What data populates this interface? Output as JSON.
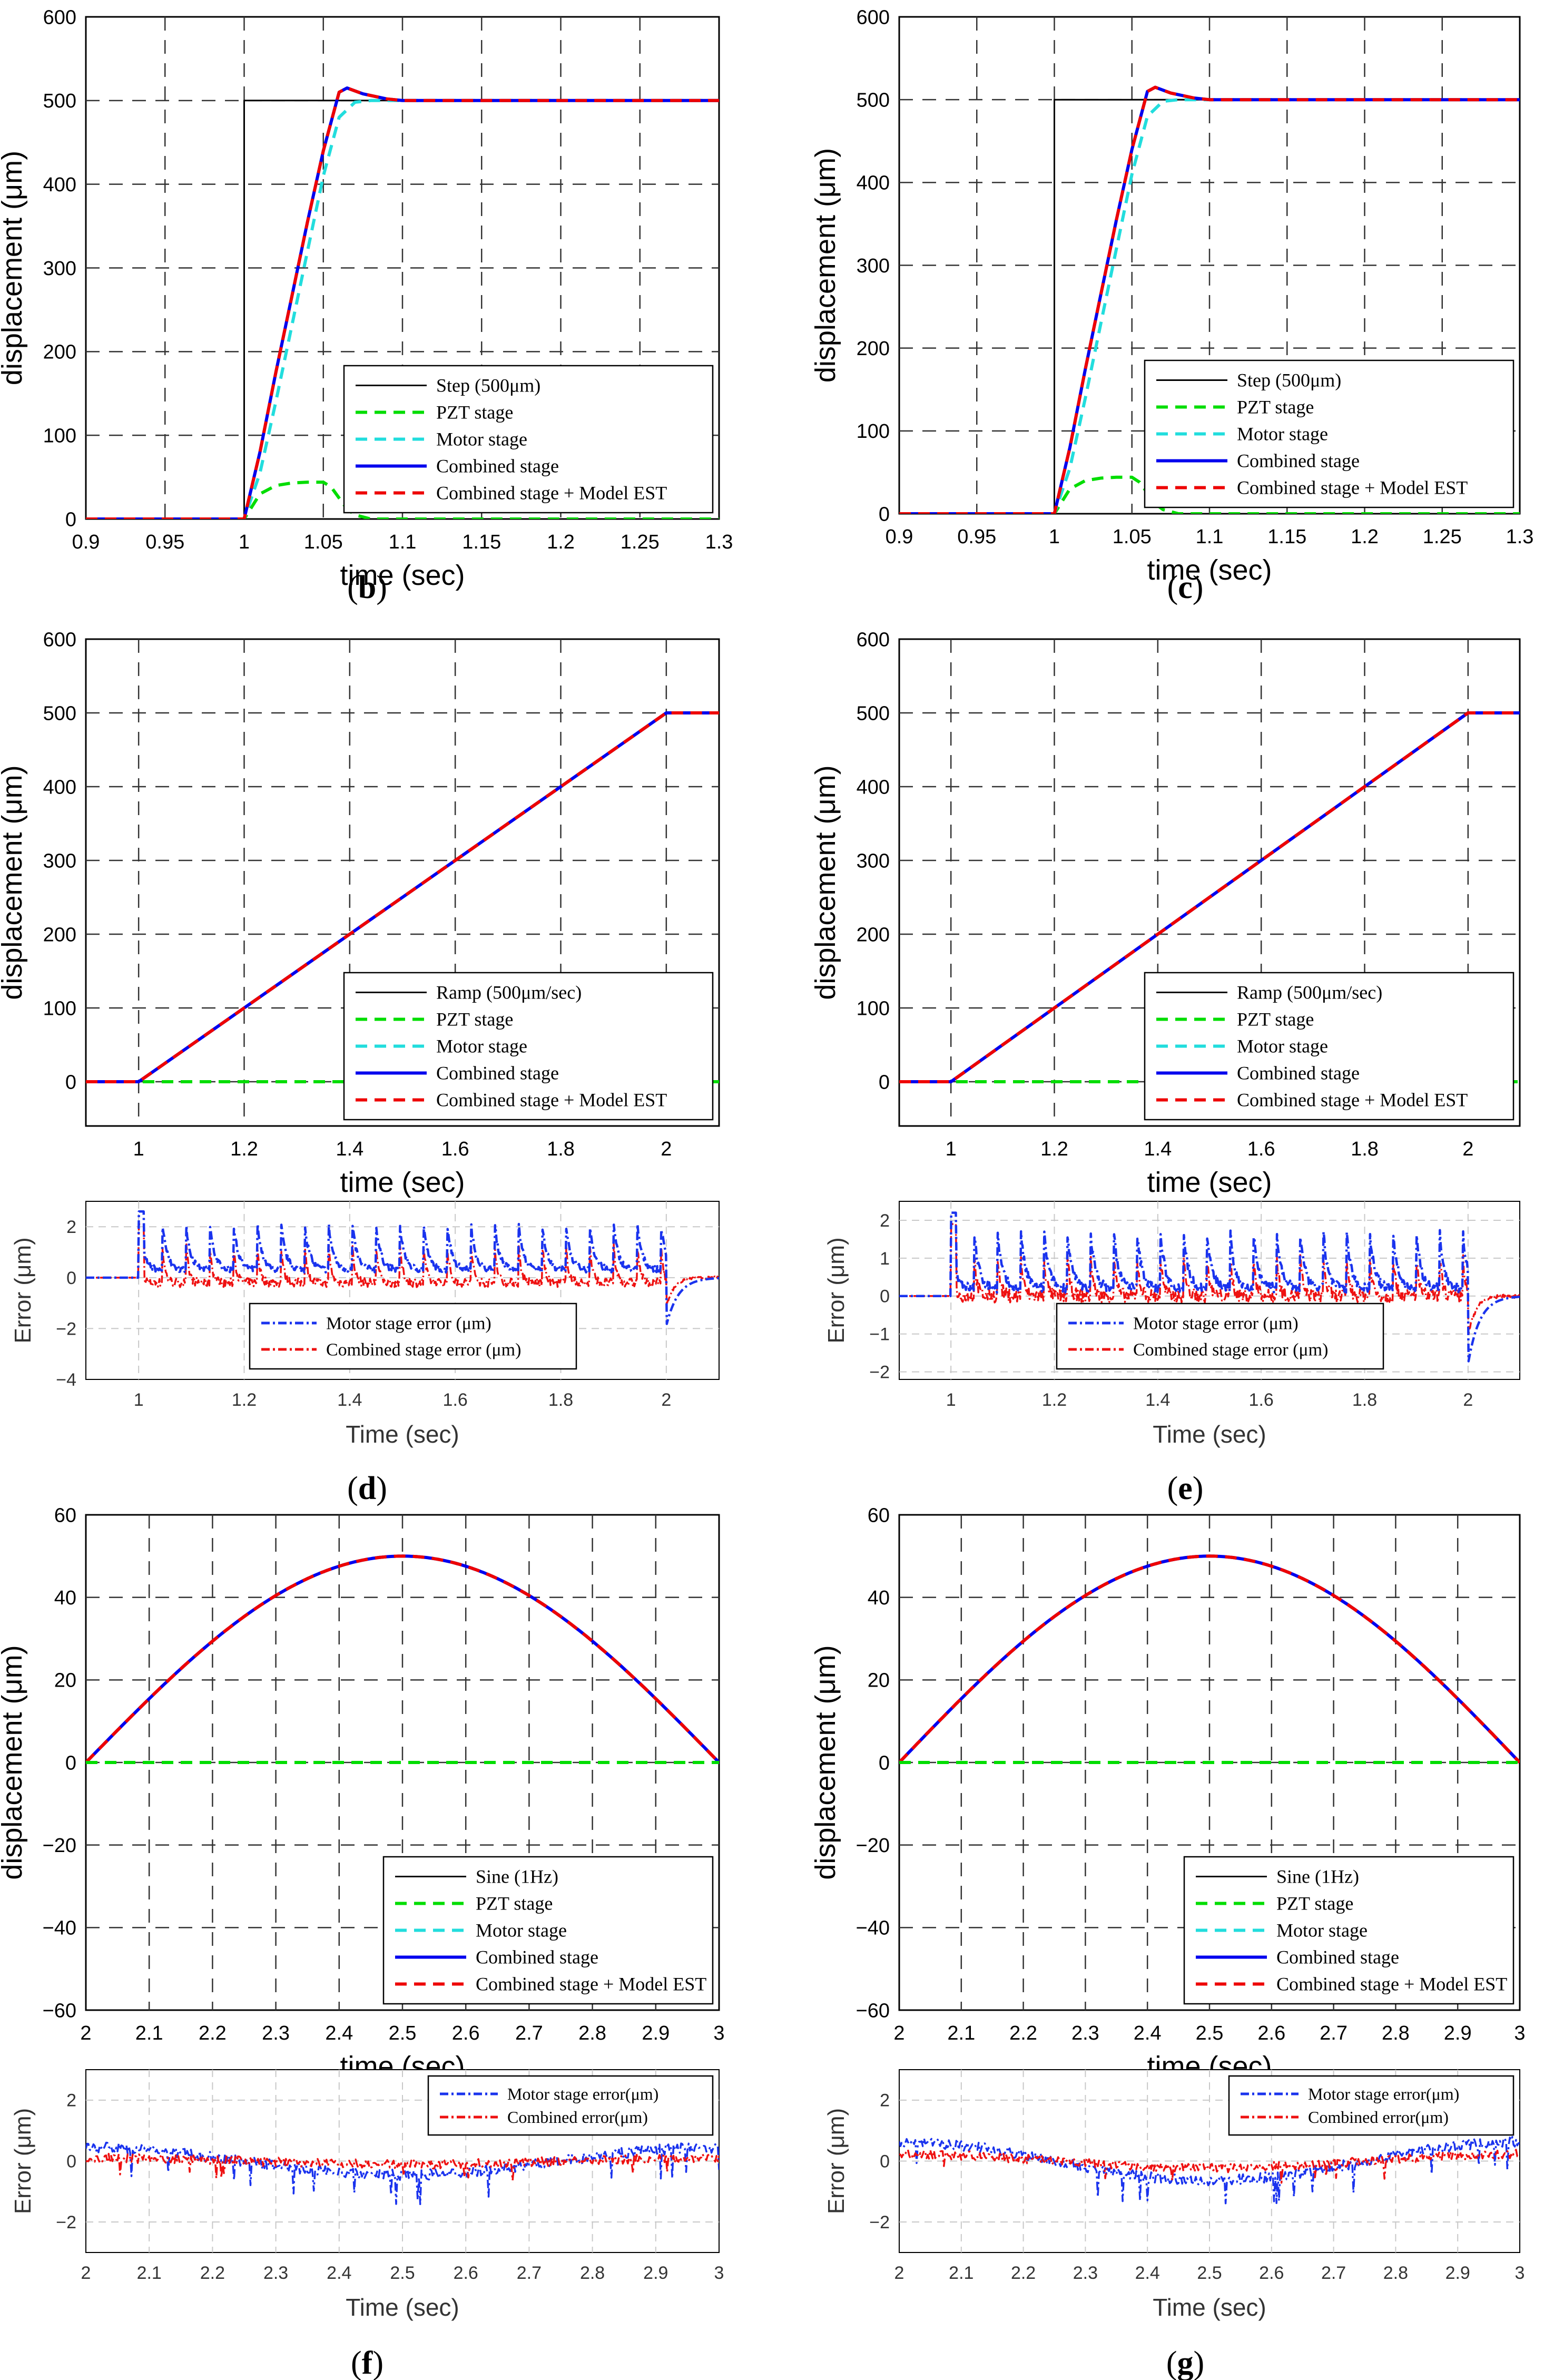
{
  "figure": {
    "panel_labels": [
      "(b)",
      "(c)",
      "(d)",
      "(e)",
      "(f)",
      "(g)"
    ]
  },
  "colors": {
    "reference": "#000000",
    "pzt": "#00dd00",
    "motor": "#22dddd",
    "combined": "#0000ee",
    "combined_est": "#ee0000",
    "motor_error": "#1a33ee",
    "combined_error": "#ee1111"
  },
  "chart_data": [
    {
      "id": "b",
      "type": "line",
      "label": "(b)",
      "xlabel": "time (sec)",
      "ylabel": "displacement (μm)",
      "xlim": [
        0.9,
        1.3
      ],
      "ylim": [
        0,
        600
      ],
      "xticks": [
        0.9,
        0.95,
        1,
        1.05,
        1.1,
        1.15,
        1.2,
        1.25,
        1.3
      ],
      "xtick_labels": [
        "0.9",
        "0.95",
        "1",
        "1.05",
        "1.1",
        "1.15",
        "1.2",
        "1.25",
        "1.3"
      ],
      "yticks": [
        0,
        100,
        200,
        300,
        400,
        500,
        600
      ],
      "ytick_labels": [
        "0",
        "100",
        "200",
        "300",
        "400",
        "500",
        "600"
      ],
      "grid": true,
      "legend_position": "bottom-right",
      "legend": [
        "Step (500μm)",
        "PZT stage",
        "Motor stage",
        "Combined stage",
        "Combined stage + Model EST"
      ],
      "series": [
        {
          "name": "Step (500μm)",
          "style": "ref",
          "x": [
            0.9,
            1.0,
            1.0,
            1.3
          ],
          "y": [
            0,
            0,
            500,
            500
          ]
        },
        {
          "name": "PZT stage",
          "style": "pzt",
          "x": [
            0.9,
            1.0,
            1.01,
            1.02,
            1.03,
            1.04,
            1.05,
            1.055,
            1.06,
            1.065,
            1.07,
            1.08,
            1.3
          ],
          "y": [
            0,
            0,
            30,
            40,
            43,
            44,
            44,
            38,
            25,
            12,
            5,
            0,
            0
          ]
        },
        {
          "name": "Motor stage",
          "style": "motor",
          "x": [
            0.9,
            1.0,
            1.01,
            1.02,
            1.03,
            1.04,
            1.05,
            1.06,
            1.07,
            1.08,
            1.1,
            1.3
          ],
          "y": [
            0,
            0,
            55,
            140,
            230,
            320,
            410,
            480,
            498,
            500,
            500,
            500
          ]
        },
        {
          "name": "Combined stage",
          "style": "combined",
          "x": [
            0.9,
            1.0,
            1.01,
            1.02,
            1.03,
            1.04,
            1.05,
            1.06,
            1.065,
            1.075,
            1.09,
            1.1,
            1.3
          ],
          "y": [
            0,
            0,
            80,
            175,
            265,
            355,
            440,
            510,
            515,
            508,
            502,
            500,
            500
          ]
        },
        {
          "name": "Combined stage + Model EST",
          "style": "est",
          "x": [
            0.9,
            1.0,
            1.01,
            1.02,
            1.03,
            1.04,
            1.05,
            1.06,
            1.065,
            1.075,
            1.09,
            1.1,
            1.3
          ],
          "y": [
            0,
            0,
            80,
            175,
            265,
            355,
            440,
            510,
            515,
            508,
            502,
            500,
            500
          ]
        }
      ]
    },
    {
      "id": "c",
      "type": "line",
      "label": "(c)",
      "xlabel": "time (sec)",
      "ylabel": "displacement (μm)",
      "xlim": [
        0.9,
        1.3
      ],
      "ylim": [
        0,
        600
      ],
      "xticks": [
        0.9,
        0.95,
        1,
        1.05,
        1.1,
        1.15,
        1.2,
        1.25,
        1.3
      ],
      "xtick_labels": [
        "0.9",
        "0.95",
        "1",
        "1.05",
        "1.1",
        "1.15",
        "1.2",
        "1.25",
        "1.3"
      ],
      "yticks": [
        0,
        100,
        200,
        300,
        400,
        500,
        600
      ],
      "ytick_labels": [
        "0",
        "100",
        "200",
        "300",
        "400",
        "500",
        "600"
      ],
      "grid": true,
      "legend_position": "bottom-right",
      "legend": [
        "Step (500μm)",
        "PZT stage",
        "Motor stage",
        "Combined stage",
        "Combined stage + Model EST"
      ],
      "series": [
        {
          "name": "Step (500μm)",
          "style": "ref",
          "x": [
            0.9,
            1.0,
            1.0,
            1.3
          ],
          "y": [
            0,
            0,
            500,
            500
          ]
        },
        {
          "name": "PZT stage",
          "style": "pzt",
          "x": [
            0.9,
            1.0,
            1.01,
            1.02,
            1.03,
            1.04,
            1.05,
            1.055,
            1.06,
            1.065,
            1.07,
            1.08,
            1.3
          ],
          "y": [
            0,
            0,
            30,
            40,
            43,
            44,
            44,
            38,
            25,
            12,
            5,
            0,
            0
          ]
        },
        {
          "name": "Motor stage",
          "style": "motor",
          "x": [
            0.9,
            1.0,
            1.01,
            1.02,
            1.03,
            1.04,
            1.05,
            1.06,
            1.07,
            1.08,
            1.1,
            1.3
          ],
          "y": [
            0,
            0,
            55,
            140,
            230,
            320,
            410,
            480,
            498,
            500,
            500,
            500
          ]
        },
        {
          "name": "Combined stage",
          "style": "combined",
          "x": [
            0.9,
            1.0,
            1.01,
            1.02,
            1.03,
            1.04,
            1.05,
            1.06,
            1.065,
            1.075,
            1.09,
            1.1,
            1.3
          ],
          "y": [
            0,
            0,
            80,
            175,
            265,
            355,
            440,
            510,
            515,
            508,
            502,
            500,
            500
          ]
        },
        {
          "name": "Combined stage + Model EST",
          "style": "est",
          "x": [
            0.9,
            1.0,
            1.01,
            1.02,
            1.03,
            1.04,
            1.05,
            1.06,
            1.065,
            1.075,
            1.09,
            1.1,
            1.3
          ],
          "y": [
            0,
            0,
            80,
            175,
            265,
            355,
            440,
            510,
            515,
            508,
            502,
            500,
            500
          ]
        }
      ]
    },
    {
      "id": "d",
      "type": "line",
      "label": "(d)",
      "xlabel": "time (sec)",
      "ylabel": "displacement (μm)",
      "xlim": [
        0.9,
        2.1
      ],
      "ylim": [
        -60,
        600
      ],
      "xticks": [
        1,
        1.2,
        1.4,
        1.6,
        1.8,
        2
      ],
      "xtick_labels": [
        "1",
        "1.2",
        "1.4",
        "1.6",
        "1.8",
        "2"
      ],
      "yticks": [
        0,
        100,
        200,
        300,
        400,
        500,
        600
      ],
      "ytick_labels": [
        "0",
        "100",
        "200",
        "300",
        "400",
        "500",
        "600"
      ],
      "grid": true,
      "legend_position": "bottom-right",
      "legend": [
        "Ramp (500μm/sec)",
        "PZT stage",
        "Motor stage",
        "Combined stage",
        "Combined stage + Model EST"
      ],
      "series": [
        {
          "name": "Ramp (500μm/sec)",
          "style": "ref",
          "x": [
            0.9,
            1.0,
            2.0,
            2.1
          ],
          "y": [
            0,
            0,
            500,
            500
          ]
        },
        {
          "name": "Motor stage",
          "style": "motor",
          "x": [
            0.9,
            1.0,
            2.0,
            2.1
          ],
          "y": [
            0,
            0,
            500,
            500
          ]
        },
        {
          "name": "Combined stage",
          "style": "combined",
          "x": [
            0.9,
            1.0,
            2.0,
            2.1
          ],
          "y": [
            0,
            0,
            500,
            500
          ]
        },
        {
          "name": "Combined stage + Model EST",
          "style": "est",
          "x": [
            0.9,
            1.0,
            2.0,
            2.1
          ],
          "y": [
            0,
            0,
            500,
            500
          ]
        },
        {
          "name": "PZT stage",
          "style": "pzt",
          "x": [
            0.9,
            2.1
          ],
          "y": [
            0,
            0
          ]
        }
      ]
    },
    {
      "id": "d-error",
      "type": "line",
      "xlabel": "Time (sec)",
      "ylabel": "Error (μm)",
      "xlim": [
        0.9,
        2.1
      ],
      "ylim": [
        -4,
        3
      ],
      "xticks": [
        1,
        1.2,
        1.4,
        1.6,
        1.8,
        2
      ],
      "xtick_labels": [
        "1",
        "1.2",
        "1.4",
        "1.6",
        "1.8",
        "2"
      ],
      "yticks": [
        -4,
        -2,
        0,
        2
      ],
      "ytick_labels": [
        "−4",
        "−2",
        "0",
        "2"
      ],
      "grid": true,
      "legend_position": "bottom-center",
      "legend": [
        "Motor stage error (μm)",
        "Combined stage error (μm)"
      ],
      "error_profile": {
        "period_sec": 0.045,
        "motor_peak": 2.1,
        "motor_base": 0.3,
        "combined_peak": 1.3,
        "combined_base": -0.2,
        "end_dip": -1.9
      }
    },
    {
      "id": "e",
      "type": "line",
      "label": "(e)",
      "xlabel": "time (sec)",
      "ylabel": "displacement (μm)",
      "xlim": [
        0.9,
        2.1
      ],
      "ylim": [
        -60,
        600
      ],
      "xticks": [
        1,
        1.2,
        1.4,
        1.6,
        1.8,
        2
      ],
      "xtick_labels": [
        "1",
        "1.2",
        "1.4",
        "1.6",
        "1.8",
        "2"
      ],
      "yticks": [
        0,
        100,
        200,
        300,
        400,
        500,
        600
      ],
      "ytick_labels": [
        "0",
        "100",
        "200",
        "300",
        "400",
        "500",
        "600"
      ],
      "grid": true,
      "legend_position": "bottom-right",
      "legend": [
        "Ramp (500μm/sec)",
        "PZT stage",
        "Motor stage",
        "Combined stage",
        "Combined stage + Model EST"
      ],
      "series": [
        {
          "name": "Ramp (500μm/sec)",
          "style": "ref",
          "x": [
            0.9,
            1.0,
            2.0,
            2.1
          ],
          "y": [
            0,
            0,
            500,
            500
          ]
        },
        {
          "name": "Motor stage",
          "style": "motor",
          "x": [
            0.9,
            1.0,
            2.0,
            2.1
          ],
          "y": [
            0,
            0,
            500,
            500
          ]
        },
        {
          "name": "Combined stage",
          "style": "combined",
          "x": [
            0.9,
            1.0,
            2.0,
            2.1
          ],
          "y": [
            0,
            0,
            500,
            500
          ]
        },
        {
          "name": "Combined stage + Model EST",
          "style": "est",
          "x": [
            0.9,
            1.0,
            2.0,
            2.1
          ],
          "y": [
            0,
            0,
            500,
            500
          ]
        },
        {
          "name": "PZT stage",
          "style": "pzt",
          "x": [
            0.9,
            2.1
          ],
          "y": [
            0,
            0
          ]
        }
      ]
    },
    {
      "id": "e-error",
      "type": "line",
      "xlabel": "Time (sec)",
      "ylabel": "Error (μm)",
      "xlim": [
        0.9,
        2.1
      ],
      "ylim": [
        -2.2,
        2.5
      ],
      "xticks": [
        1,
        1.2,
        1.4,
        1.6,
        1.8,
        2
      ],
      "xtick_labels": [
        "1",
        "1.2",
        "1.4",
        "1.6",
        "1.8",
        "2"
      ],
      "yticks": [
        -2,
        -1,
        0,
        1,
        2
      ],
      "ytick_labels": [
        "−2",
        "−1",
        "0",
        "1",
        "2"
      ],
      "grid": true,
      "legend_position": "bottom-center",
      "legend": [
        "Motor stage error (μm)",
        "Combined stage error (μm)"
      ],
      "error_profile": {
        "period_sec": 0.045,
        "motor_peak": 1.7,
        "motor_base": 0.2,
        "combined_peak": 1.1,
        "combined_base": 0.0,
        "end_dip": -1.8
      }
    },
    {
      "id": "f",
      "type": "line",
      "label": "(f)",
      "xlabel": "time (sec)",
      "ylabel": "displacement (μm)",
      "xlim": [
        2,
        3
      ],
      "ylim": [
        -60,
        60
      ],
      "xticks": [
        2,
        2.1,
        2.2,
        2.3,
        2.4,
        2.5,
        2.6,
        2.7,
        2.8,
        2.9,
        3
      ],
      "xtick_labels": [
        "2",
        "2.1",
        "2.2",
        "2.3",
        "2.4",
        "2.5",
        "2.6",
        "2.7",
        "2.8",
        "2.9",
        "3"
      ],
      "yticks": [
        -60,
        -40,
        -20,
        0,
        20,
        40,
        60
      ],
      "ytick_labels": [
        "−60",
        "−40",
        "−20",
        "0",
        "20",
        "40",
        "60"
      ],
      "grid": true,
      "legend_position": "bottom-right",
      "legend": [
        "Sine (1Hz)",
        "PZT stage",
        "Motor stage",
        "Combined stage",
        "Combined stage + Model EST"
      ],
      "sine": {
        "amplitude": 50,
        "frequency_hz": 1,
        "x_start": 2,
        "x_end": 3
      }
    },
    {
      "id": "f-error",
      "type": "line",
      "xlabel": "Time (sec)",
      "ylabel": "Error (μm)",
      "xlim": [
        2,
        3
      ],
      "ylim": [
        -3,
        3
      ],
      "xticks": [
        2,
        2.1,
        2.2,
        2.3,
        2.4,
        2.5,
        2.6,
        2.7,
        2.8,
        2.9,
        3
      ],
      "xtick_labels": [
        "2",
        "2.1",
        "2.2",
        "2.3",
        "2.4",
        "2.5",
        "2.6",
        "2.7",
        "2.8",
        "2.9",
        "3"
      ],
      "yticks": [
        -2,
        0,
        2
      ],
      "ytick_labels": [
        "−2",
        "0",
        "2"
      ],
      "grid": true,
      "legend_position": "top-right",
      "legend": [
        "Motor stage error(μm)",
        "Combined error(μm)"
      ],
      "error_profile": {
        "motor_amp": 0.5,
        "combined_amp": 0.2
      }
    },
    {
      "id": "g",
      "type": "line",
      "label": "(g)",
      "xlabel": "time (sec)",
      "ylabel": "displacement (μm)",
      "xlim": [
        2,
        3
      ],
      "ylim": [
        -60,
        60
      ],
      "xticks": [
        2,
        2.1,
        2.2,
        2.3,
        2.4,
        2.5,
        2.6,
        2.7,
        2.8,
        2.9,
        3
      ],
      "xtick_labels": [
        "2",
        "2.1",
        "2.2",
        "2.3",
        "2.4",
        "2.5",
        "2.6",
        "2.7",
        "2.8",
        "2.9",
        "3"
      ],
      "yticks": [
        -60,
        -40,
        -20,
        0,
        20,
        40,
        60
      ],
      "ytick_labels": [
        "−60",
        "−40",
        "−20",
        "0",
        "20",
        "40",
        "60"
      ],
      "grid": true,
      "legend_position": "bottom-right",
      "legend": [
        "Sine (1Hz)",
        "PZT stage",
        "Motor stage",
        "Combined stage",
        "Combined stage + Model EST"
      ],
      "sine": {
        "amplitude": 50,
        "frequency_hz": 1,
        "x_start": 2,
        "x_end": 3
      }
    },
    {
      "id": "g-error",
      "type": "line",
      "xlabel": "Time (sec)",
      "ylabel": "Error (μm)",
      "xlim": [
        2,
        3
      ],
      "ylim": [
        -3,
        3
      ],
      "xticks": [
        2,
        2.1,
        2.2,
        2.3,
        2.4,
        2.5,
        2.6,
        2.7,
        2.8,
        2.9,
        3
      ],
      "xtick_labels": [
        "2",
        "2.1",
        "2.2",
        "2.3",
        "2.4",
        "2.5",
        "2.6",
        "2.7",
        "2.8",
        "2.9",
        "3"
      ],
      "yticks": [
        -2,
        0,
        2
      ],
      "ytick_labels": [
        "−2",
        "0",
        "2"
      ],
      "grid": true,
      "legend_position": "top-right",
      "legend": [
        "Motor stage error(μm)",
        "Combined error(μm)"
      ],
      "error_profile": {
        "motor_amp": 0.7,
        "combined_amp": 0.45
      }
    }
  ]
}
